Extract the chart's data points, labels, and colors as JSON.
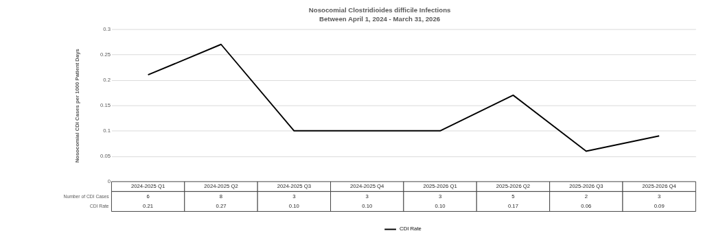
{
  "chart_data": {
    "type": "line",
    "title": "Nosocomial Clostridioides difficile Infections",
    "subtitle": "Between April 1, 2024 - March 31, 2026",
    "ylabel": "Nosocomial CDI Cases per 1000 Patient Days",
    "categories": [
      "2024-2025 Q1",
      "2024-2025 Q2",
      "2024-2025 Q3",
      "2024-2025 Q4",
      "2025-2026 Q1",
      "2025-2026 Q2",
      "2025-2026 Q3",
      "2025-2026 Q4"
    ],
    "series": [
      {
        "name": "CDI Rate",
        "color": "#000000",
        "values": [
          0.21,
          0.27,
          0.1,
          0.1,
          0.1,
          0.17,
          0.06,
          0.09
        ],
        "value_labels": [
          "0.21",
          "0.27",
          "0.10",
          "0.10",
          "0.10",
          "0.17",
          "0.06",
          "0.09"
        ]
      }
    ],
    "annotations": [
      "Number of CDI Cases",
      "6",
      "8",
      "3",
      "3",
      "3",
      "5",
      "2",
      "3"
    ],
    "ylim": [
      0,
      0.3
    ],
    "yticks": [
      0,
      0.05,
      0.1,
      0.15,
      0.2,
      0.25,
      0.3
    ],
    "grid": "y",
    "legend": "bottom",
    "marker": "none",
    "line_style": "solid"
  }
}
